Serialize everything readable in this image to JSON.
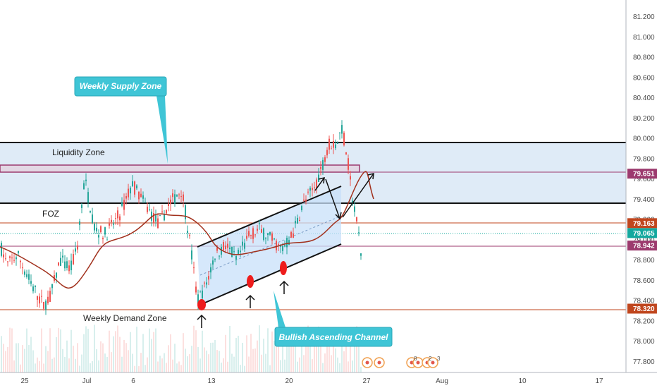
{
  "chart_data": {
    "type": "candlestick",
    "y_axis": {
      "ylim": [
        77.7,
        81.3
      ],
      "ticks": [
        "81.200",
        "81.000",
        "80.800",
        "80.600",
        "80.400",
        "80.200",
        "80.000",
        "79.800",
        "79.600",
        "79.400",
        "79.200",
        "79.000",
        "78.800",
        "78.600",
        "78.400",
        "78.200",
        "78.000",
        "77.800"
      ]
    },
    "x_axis": {
      "ticks": [
        "25",
        "Jul",
        "6",
        "13",
        "20",
        "27",
        "Aug",
        "10",
        "17"
      ]
    },
    "zones": [
      {
        "name": "Liquidity Zone",
        "top": 79.95,
        "bottom": 79.35
      },
      {
        "name": "FOZ"
      },
      {
        "name": "Weekly Demand Zone"
      }
    ],
    "callouts": [
      "Weekly Supply Zone",
      "Bullish Ascending Channel"
    ],
    "price_tags": [
      {
        "value": "79.651",
        "color": "#9c3a6e"
      },
      {
        "value": "79.163",
        "color": "#c0461e"
      },
      {
        "value": "79.065",
        "color": "#13a89e"
      },
      {
        "value": "78.942",
        "color": "#9c3a6e"
      },
      {
        "value": "78.320",
        "color": "#c0461e"
      }
    ],
    "events": [
      "8",
      "2",
      "3"
    ],
    "colors": {
      "up": "#26a69a",
      "down": "#ef5350",
      "zone_fill": "#d9e8f6",
      "channel_fill": "#c8e0fa",
      "ma": "#a1301c",
      "callout": "#3fc5d6",
      "channel_marker": "#ee1c1c"
    }
  }
}
